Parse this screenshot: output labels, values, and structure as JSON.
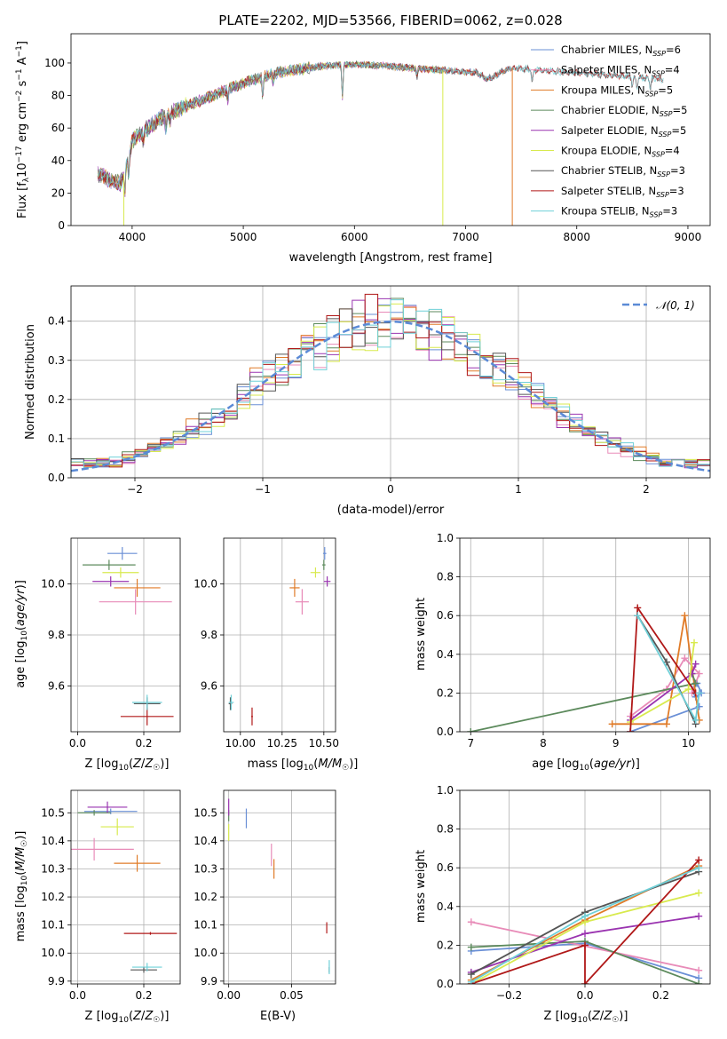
{
  "colors": {
    "Chabrier MILES": "#6a8fd6",
    "Salpeter MILES": "#e88bb8",
    "Kroupa MILES": "#e07b28",
    "Chabrier ELODIE": "#5c8a5c",
    "Salpeter ELODIE": "#9a34b0",
    "Kroupa ELODIE": "#d8ea4e",
    "Chabrier STELIB": "#555555",
    "Salpeter STELIB": "#b01818",
    "Kroupa STELIB": "#6fd0d8",
    "normal": "#5b8ad6"
  },
  "chart_data": [
    {
      "id": "spectrum",
      "type": "line",
      "title": "PLATE=2202, MJD=53566, FIBERID=0062, z=0.028",
      "xlabel": "wavelength [Angstrom, rest frame]",
      "ylabel": "Flux [f_λ 10^-17 erg cm^-2 s^-1 A^-1]",
      "xlim": [
        3450,
        9200
      ],
      "ylim": [
        0,
        118
      ],
      "xticks": [
        4000,
        5000,
        6000,
        7000,
        8000,
        9000
      ],
      "yticks": [
        0,
        20,
        40,
        60,
        80,
        100
      ],
      "grid": false,
      "legend_position": "right",
      "legend": [
        {
          "model": "Chabrier MILES",
          "label": "Chabrier MILES, N",
          "sub": "SSP",
          "tail": "=6"
        },
        {
          "model": "Salpeter MILES",
          "label": "Salpeter MILES, N",
          "sub": "SSP",
          "tail": "=4"
        },
        {
          "model": "Kroupa MILES",
          "label": "Kroupa MILES, N",
          "sub": "SSP",
          "tail": "=5"
        },
        {
          "model": "Chabrier ELODIE",
          "label": "Chabrier ELODIE, N",
          "sub": "SSP",
          "tail": "=5"
        },
        {
          "model": "Salpeter ELODIE",
          "label": "Salpeter ELODIE, N",
          "sub": "SSP",
          "tail": "=5"
        },
        {
          "model": "Kroupa ELODIE",
          "label": "Kroupa ELODIE, N",
          "sub": "SSP",
          "tail": "=4"
        },
        {
          "model": "Chabrier STELIB",
          "label": "Chabrier STELIB, N",
          "sub": "SSP",
          "tail": "=3"
        },
        {
          "model": "Salpeter STELIB",
          "label": "Salpeter STELIB, N",
          "sub": "SSP",
          "tail": "=3"
        },
        {
          "model": "Kroupa STELIB",
          "label": "Kroupa STELIB, N",
          "sub": "SSP",
          "tail": "=3"
        }
      ],
      "continuum": {
        "x": [
          3690,
          3800,
          3900,
          3950,
          4000,
          4100,
          4200,
          4300,
          4500,
          4700,
          4900,
          5100,
          5300,
          5500,
          5700,
          5900,
          6100,
          6300,
          6500,
          6700,
          6900,
          7100,
          7200,
          7400,
          7600,
          7800,
          8000,
          8200,
          8400,
          8600,
          8800
        ],
        "y": [
          32,
          28,
          26,
          38,
          52,
          58,
          63,
          68,
          74,
          79,
          85,
          90,
          94,
          96,
          98,
          99,
          99,
          98,
          97,
          96,
          95,
          94,
          90,
          97,
          96,
          95,
          94,
          93,
          92,
          91,
          90
        ]
      },
      "absorption_lines": [
        {
          "x": 3934,
          "depth": 14
        },
        {
          "x": 3969,
          "depth": 12
        },
        {
          "x": 4102,
          "depth": 6
        },
        {
          "x": 4304,
          "depth": 9
        },
        {
          "x": 4341,
          "depth": 5
        },
        {
          "x": 4861,
          "depth": 6
        },
        {
          "x": 5175,
          "depth": 13
        },
        {
          "x": 5270,
          "depth": 5
        },
        {
          "x": 5892,
          "depth": 20
        },
        {
          "x": 6563,
          "depth": 5
        },
        {
          "x": 7600,
          "depth": 8
        },
        {
          "x": 8500,
          "depth": 6
        },
        {
          "x": 8542,
          "depth": 7
        },
        {
          "x": 8662,
          "depth": 6
        }
      ],
      "masked_spikes": [
        {
          "model": "Kroupa ELODIE",
          "x": 3925
        },
        {
          "model": "Kroupa ELODIE",
          "x": 6795
        },
        {
          "model": "Kroupa MILES",
          "x": 7420
        }
      ],
      "model_xmax": {
        "Chabrier MILES": 7400,
        "Salpeter MILES": 7400,
        "Kroupa MILES": 7400,
        "Chabrier ELODIE": 6800,
        "Salpeter ELODIE": 6800,
        "Kroupa ELODIE": 6800,
        "Chabrier STELIB": 8780,
        "Salpeter STELIB": 8780,
        "Kroupa STELIB": 8780
      }
    },
    {
      "id": "residuals",
      "type": "line",
      "xlabel": "(data-model)/error",
      "ylabel": "Normed distribution",
      "xlim": [
        -2.5,
        2.5
      ],
      "ylim": [
        0,
        0.49
      ],
      "xticks": [
        -2,
        -1,
        0,
        1,
        2
      ],
      "yticks": [
        0.0,
        0.1,
        0.2,
        0.3,
        0.4
      ],
      "grid": true,
      "legend_position": "top-right",
      "legend": [
        {
          "label": "𝒩(0, 1)",
          "style": "dashed",
          "model": "normal"
        }
      ],
      "bins": {
        "min": -2.5,
        "max": 2.5,
        "width": 0.1
      },
      "series_models": [
        "Chabrier MILES",
        "Salpeter MILES",
        "Kroupa MILES",
        "Chabrier ELODIE",
        "Salpeter ELODIE",
        "Kroupa ELODIE",
        "Chabrier STELIB",
        "Salpeter STELIB",
        "Kroupa STELIB"
      ]
    },
    {
      "id": "age-vs-Z",
      "type": "scatter",
      "xlabel": "Z [log10(Z/Z☉)]",
      "ylabel": "age [log10(age/yr)]",
      "xlim": [
        -0.02,
        0.31
      ],
      "ylim": [
        9.42,
        10.18
      ],
      "xticks": [
        0.0,
        0.2
      ],
      "yticks": [
        9.6,
        9.8,
        10.0
      ],
      "grid": true,
      "points": [
        {
          "model": "Chabrier MILES",
          "x": 0.135,
          "y": 10.12,
          "xerr": 0.045,
          "yerr": 0.025
        },
        {
          "model": "Salpeter MILES",
          "x": 0.175,
          "y": 9.93,
          "xerr": 0.11,
          "yerr": 0.05
        },
        {
          "model": "Kroupa MILES",
          "x": 0.18,
          "y": 9.985,
          "xerr": 0.07,
          "yerr": 0.035
        },
        {
          "model": "Chabrier ELODIE",
          "x": 0.095,
          "y": 10.075,
          "xerr": 0.08,
          "yerr": 0.02
        },
        {
          "model": "Salpeter ELODIE",
          "x": 0.1,
          "y": 10.01,
          "xerr": 0.055,
          "yerr": 0.02
        },
        {
          "model": "Kroupa ELODIE",
          "x": 0.13,
          "y": 10.045,
          "xerr": 0.055,
          "yerr": 0.02
        },
        {
          "model": "Chabrier STELIB",
          "x": 0.21,
          "y": 9.53,
          "xerr": 0.04,
          "yerr": 0.025
        },
        {
          "model": "Salpeter STELIB",
          "x": 0.21,
          "y": 9.48,
          "xerr": 0.08,
          "yerr": 0.035
        },
        {
          "model": "Kroupa STELIB",
          "x": 0.21,
          "y": 9.535,
          "xerr": 0.045,
          "yerr": 0.03
        }
      ]
    },
    {
      "id": "age-vs-mass",
      "type": "scatter",
      "xlabel": "mass [log10(M/M☉)]",
      "xlim": [
        9.9,
        10.57
      ],
      "ylim": [
        9.42,
        10.18
      ],
      "xticks": [
        10.0,
        10.25,
        10.5
      ],
      "yticks": [
        9.6,
        9.8,
        10.0
      ],
      "grid": true,
      "points": [
        {
          "model": "Chabrier MILES",
          "x": 10.505,
          "y": 10.12,
          "xerr": 0.01,
          "yerr": 0.025
        },
        {
          "model": "Salpeter MILES",
          "x": 10.37,
          "y": 9.93,
          "xerr": 0.04,
          "yerr": 0.05
        },
        {
          "model": "Kroupa MILES",
          "x": 10.325,
          "y": 9.985,
          "xerr": 0.03,
          "yerr": 0.035
        },
        {
          "model": "Chabrier ELODIE",
          "x": 10.5,
          "y": 10.075,
          "xerr": 0.01,
          "yerr": 0.02
        },
        {
          "model": "Salpeter ELODIE",
          "x": 10.52,
          "y": 10.01,
          "xerr": 0.02,
          "yerr": 0.02
        },
        {
          "model": "Kroupa ELODIE",
          "x": 10.45,
          "y": 10.045,
          "xerr": 0.03,
          "yerr": 0.02
        },
        {
          "model": "Chabrier STELIB",
          "x": 9.94,
          "y": 9.53,
          "xerr": 0.01,
          "yerr": 0.025
        },
        {
          "model": "Salpeter STELIB",
          "x": 10.07,
          "y": 9.48,
          "xerr": 0.005,
          "yerr": 0.035
        },
        {
          "model": "Kroupa STELIB",
          "x": 9.945,
          "y": 9.535,
          "xerr": 0.015,
          "yerr": 0.03
        }
      ]
    },
    {
      "id": "weight-vs-age",
      "type": "line",
      "xlabel": "age [log10(age/yr)]",
      "ylabel": "mass weight",
      "xlim": [
        6.85,
        10.3
      ],
      "ylim": [
        0,
        1.0
      ],
      "xticks": [
        7,
        8,
        9,
        10
      ],
      "yticks": [
        0.0,
        0.2,
        0.4,
        0.6,
        0.8,
        1.0
      ],
      "grid": true,
      "series": [
        {
          "model": "Chabrier MILES",
          "x": [
            9.2,
            10.15,
            10.05,
            10.12,
            10.18,
            10.1
          ],
          "y": [
            0.0,
            0.13,
            0.22,
            0.25,
            0.2,
            0.18
          ]
        },
        {
          "model": "Salpeter MILES",
          "x": [
            9.2,
            9.7,
            9.95,
            10.15,
            10.05
          ],
          "y": [
            0.08,
            0.22,
            0.38,
            0.3,
            0.2
          ]
        },
        {
          "model": "Kroupa MILES",
          "x": [
            8.95,
            9.7,
            9.95,
            10.15
          ],
          "y": [
            0.04,
            0.04,
            0.6,
            0.06
          ]
        },
        {
          "model": "Chabrier ELODIE",
          "x": [
            7.0,
            10.1,
            10.05
          ],
          "y": [
            0.0,
            0.25,
            0.3
          ]
        },
        {
          "model": "Salpeter ELODIE",
          "x": [
            9.2,
            10.05,
            10.1
          ],
          "y": [
            0.06,
            0.3,
            0.35
          ]
        },
        {
          "model": "Kroupa ELODIE",
          "x": [
            9.2,
            10.0,
            10.08
          ],
          "y": [
            0.05,
            0.22,
            0.46
          ]
        },
        {
          "model": "Chabrier STELIB",
          "x": [
            9.3,
            9.7,
            10.1
          ],
          "y": [
            0.6,
            0.36,
            0.04
          ]
        },
        {
          "model": "Salpeter STELIB",
          "x": [
            9.2,
            9.3,
            10.1
          ],
          "y": [
            0.0,
            0.64,
            0.2
          ]
        },
        {
          "model": "Kroupa STELIB",
          "x": [
            9.3,
            10.1,
            10.15
          ],
          "y": [
            0.6,
            0.06,
            0.2
          ]
        }
      ]
    },
    {
      "id": "mass-vs-Z",
      "type": "scatter",
      "xlabel": "Z [log10(Z/Z☉)]",
      "ylabel": "mass [log10(M/M☉)]",
      "xlim": [
        -0.02,
        0.31
      ],
      "ylim": [
        9.89,
        10.58
      ],
      "xticks": [
        0.0,
        0.2
      ],
      "yticks": [
        9.9,
        10.0,
        10.1,
        10.2,
        10.3,
        10.4,
        10.5
      ],
      "grid": true,
      "points": [
        {
          "model": "Chabrier MILES",
          "x": 0.1,
          "y": 10.505,
          "xerr": 0.08,
          "yerr": 0.01
        },
        {
          "model": "Salpeter MILES",
          "x": 0.05,
          "y": 10.37,
          "xerr": 0.12,
          "yerr": 0.04
        },
        {
          "model": "Kroupa MILES",
          "x": 0.18,
          "y": 10.32,
          "xerr": 0.07,
          "yerr": 0.03
        },
        {
          "model": "Chabrier ELODIE",
          "x": 0.05,
          "y": 10.5,
          "xerr": 0.05,
          "yerr": 0.01
        },
        {
          "model": "Salpeter ELODIE",
          "x": 0.09,
          "y": 10.52,
          "xerr": 0.06,
          "yerr": 0.02
        },
        {
          "model": "Kroupa ELODIE",
          "x": 0.12,
          "y": 10.45,
          "xerr": 0.05,
          "yerr": 0.03
        },
        {
          "model": "Chabrier STELIB",
          "x": 0.2,
          "y": 9.94,
          "xerr": 0.04,
          "yerr": 0.01
        },
        {
          "model": "Salpeter STELIB",
          "x": 0.22,
          "y": 10.07,
          "xerr": 0.08,
          "yerr": 0.005
        },
        {
          "model": "Kroupa STELIB",
          "x": 0.21,
          "y": 9.95,
          "xerr": 0.045,
          "yerr": 0.015
        }
      ]
    },
    {
      "id": "mass-vs-ebv",
      "type": "scatter",
      "xlabel": "E(B-V)",
      "xlim": [
        -0.004,
        0.085
      ],
      "ylim": [
        9.89,
        10.58
      ],
      "xticks": [
        0.0,
        0.05
      ],
      "yticks": [
        9.9,
        10.0,
        10.1,
        10.2,
        10.3,
        10.4,
        10.5
      ],
      "grid": true,
      "points": [
        {
          "model": "Chabrier MILES",
          "x": 0.014,
          "y": 10.48,
          "xerr": 0,
          "yerr": 0.035
        },
        {
          "model": "Salpeter MILES",
          "x": 0.034,
          "y": 10.35,
          "xerr": 0,
          "yerr": 0.04
        },
        {
          "model": "Kroupa MILES",
          "x": 0.036,
          "y": 10.3,
          "xerr": 0,
          "yerr": 0.035
        },
        {
          "model": "Chabrier ELODIE",
          "x": 0.0,
          "y": 10.49,
          "xerr": 0,
          "yerr": 0.02
        },
        {
          "model": "Salpeter ELODIE",
          "x": 0.0,
          "y": 10.52,
          "xerr": 0,
          "yerr": 0.03
        },
        {
          "model": "Kroupa ELODIE",
          "x": 0.0,
          "y": 10.43,
          "xerr": 0,
          "yerr": 0.03
        },
        {
          "model": "Chabrier STELIB",
          "x": 0.08,
          "y": 9.94,
          "xerr": 0,
          "yerr": 0.01
        },
        {
          "model": "Salpeter STELIB",
          "x": 0.078,
          "y": 10.09,
          "xerr": 0,
          "yerr": 0.02
        },
        {
          "model": "Kroupa STELIB",
          "x": 0.08,
          "y": 9.95,
          "xerr": 0,
          "yerr": 0.025
        }
      ]
    },
    {
      "id": "weight-vs-Z",
      "type": "line",
      "xlabel": "Z [log10(Z/Z☉)]",
      "ylabel": "mass weight",
      "xlim": [
        -0.33,
        0.33
      ],
      "ylim": [
        0,
        1.0
      ],
      "xticks": [
        -0.2,
        0.0,
        0.2
      ],
      "yticks": [
        0.0,
        0.2,
        0.4,
        0.6,
        0.8,
        1.0
      ],
      "grid": true,
      "series": [
        {
          "model": "Chabrier MILES",
          "x": [
            -0.3,
            0.0,
            0.3
          ],
          "y": [
            0.17,
            0.21,
            0.03
          ]
        },
        {
          "model": "Salpeter MILES",
          "x": [
            -0.3,
            0.3
          ],
          "y": [
            0.32,
            0.07
          ]
        },
        {
          "model": "Kroupa MILES",
          "x": [
            -0.3,
            0.0,
            0.3
          ],
          "y": [
            0.02,
            0.33,
            0.61
          ]
        },
        {
          "model": "Chabrier ELODIE",
          "x": [
            -0.3,
            0.0,
            0.3
          ],
          "y": [
            0.19,
            0.22,
            0.0
          ]
        },
        {
          "model": "Salpeter ELODIE",
          "x": [
            -0.3,
            0.0,
            0.3
          ],
          "y": [
            0.06,
            0.26,
            0.35
          ]
        },
        {
          "model": "Kroupa ELODIE",
          "x": [
            -0.3,
            0.0,
            0.3
          ],
          "y": [
            0.0,
            0.32,
            0.47
          ]
        },
        {
          "model": "Chabrier STELIB",
          "x": [
            -0.3,
            0.0,
            0.3
          ],
          "y": [
            0.05,
            0.37,
            0.58
          ]
        },
        {
          "model": "Salpeter STELIB",
          "x": [
            -0.3,
            0.0,
            0.0,
            0.3
          ],
          "y": [
            0.0,
            0.2,
            0.0,
            0.64
          ]
        },
        {
          "model": "Kroupa STELIB",
          "x": [
            -0.3,
            0.0,
            0.3
          ],
          "y": [
            0.01,
            0.35,
            0.6
          ]
        }
      ]
    }
  ]
}
